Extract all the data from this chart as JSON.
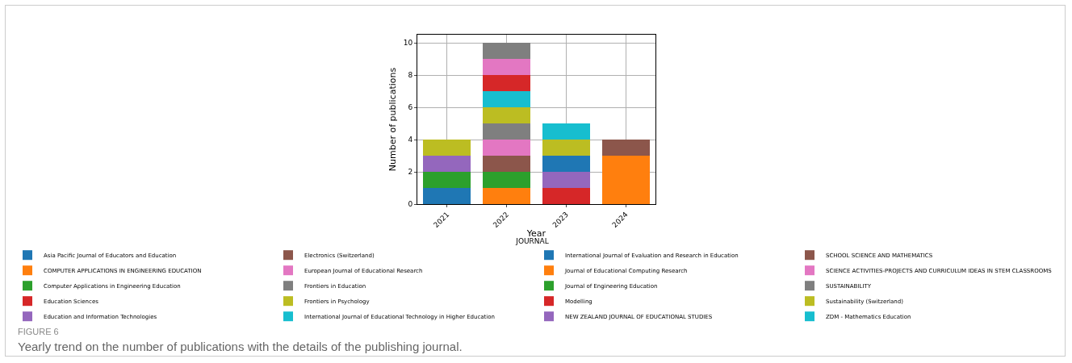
{
  "chart_data": {
    "type": "bar",
    "stacked": true,
    "categories": [
      "2021",
      "2022",
      "2023",
      "2024"
    ],
    "xlabel": "Year",
    "ylabel": "Number of publications",
    "legend_title": "JOURNAL",
    "ylim": [
      0,
      10.5
    ],
    "yticks": [
      0,
      2,
      4,
      6,
      8,
      10
    ],
    "grid": true,
    "legend": "bottom",
    "annotations": [
      "FIGURE 6",
      "Yearly trend on the number of publications with the details of the publishing journal."
    ],
    "series": [
      {
        "name": "Asia Pacific Journal of Educators and Education",
        "color": "#1f77b4",
        "values": [
          1,
          null,
          null,
          null
        ]
      },
      {
        "name": "COMPUTER APPLICATIONS IN ENGINEERING EDUCATION",
        "color": "#ff7f0e",
        "values": [
          null,
          1,
          null,
          null
        ]
      },
      {
        "name": "Computer Applications in Engineering Education",
        "color": "#2ca02c",
        "values": [
          1,
          1,
          null,
          null
        ]
      },
      {
        "name": "Education Sciences",
        "color": "#d62728",
        "values": [
          null,
          null,
          1,
          null
        ]
      },
      {
        "name": "Education and Information Technologies",
        "color": "#9467bd",
        "values": [
          1,
          null,
          1,
          null
        ]
      },
      {
        "name": "Electronics (Switzerland)",
        "color": "#8c564b",
        "values": [
          null,
          1,
          null,
          null
        ]
      },
      {
        "name": "European Journal of Educational Research",
        "color": "#e377c2",
        "values": [
          null,
          1,
          null,
          null
        ]
      },
      {
        "name": "Frontiers in Education",
        "color": "#7f7f7f",
        "values": [
          null,
          1,
          null,
          null
        ]
      },
      {
        "name": "Frontiers in Psychology",
        "color": "#bcbd22",
        "values": [
          1,
          1,
          null,
          null
        ]
      },
      {
        "name": "International Journal of Educational Technology in Higher Education",
        "color": "#17becf",
        "values": [
          null,
          1,
          null,
          null
        ]
      },
      {
        "name": "International Journal of Evaluation and Research in Education",
        "color": "#1f77b4",
        "values": [
          null,
          null,
          1,
          null
        ]
      },
      {
        "name": "Journal of Educational Computing Research",
        "color": "#ff7f0e",
        "values": [
          null,
          null,
          null,
          3
        ]
      },
      {
        "name": "Journal of Engineering Education",
        "color": "#2ca02c",
        "values": [
          null,
          null,
          null,
          null
        ]
      },
      {
        "name": "Modelling",
        "color": "#d62728",
        "values": [
          null,
          1,
          null,
          null
        ]
      },
      {
        "name": "NEW ZEALAND JOURNAL OF EDUCATIONAL STUDIES",
        "color": "#9467bd",
        "values": [
          null,
          null,
          null,
          null
        ]
      },
      {
        "name": "SCHOOL SCIENCE AND MATHEMATICS",
        "color": "#8c564b",
        "values": [
          null,
          null,
          null,
          1
        ]
      },
      {
        "name": "SCIENCE ACTIVITIES-PROJECTS AND CURRICULUM IDEAS IN STEM CLASSROOMS",
        "color": "#e377c2",
        "values": [
          null,
          1,
          null,
          null
        ]
      },
      {
        "name": "SUSTAINABILITY",
        "color": "#7f7f7f",
        "values": [
          null,
          1,
          null,
          null
        ]
      },
      {
        "name": "Sustainability (Switzerland)",
        "color": "#bcbd22",
        "values": [
          null,
          null,
          1,
          null
        ]
      },
      {
        "name": "ZDM - Mathematics Education",
        "color": "#17becf",
        "values": [
          null,
          null,
          1,
          null
        ]
      }
    ]
  }
}
